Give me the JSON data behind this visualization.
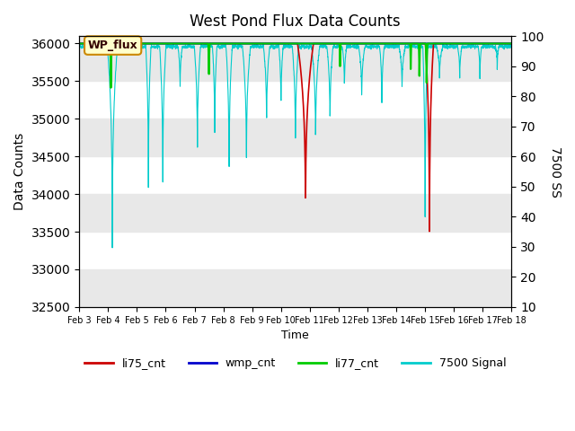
{
  "title": "West Pond Flux Data Counts",
  "xlabel": "Time",
  "ylabel_left": "Data Counts",
  "ylabel_right": "7500 SS",
  "ylim_left": [
    32500,
    36100
  ],
  "ylim_right": [
    10,
    100
  ],
  "yticks_left": [
    32500,
    33000,
    33500,
    34000,
    34500,
    35000,
    35500,
    36000
  ],
  "yticks_right": [
    10,
    20,
    30,
    40,
    50,
    60,
    70,
    80,
    90,
    100
  ],
  "xtick_labels": [
    "Feb 3",
    "Feb 4",
    "Feb 5",
    "Feb 6",
    "Feb 7",
    "Feb 8",
    "Feb 9",
    "Feb 10",
    "Feb 11",
    "Feb 12",
    "Feb 13",
    "Feb 14",
    "Feb 15",
    "Feb 16",
    "Feb 17",
    "Feb 18"
  ],
  "annotation_text": "WP_flux",
  "colors": {
    "li75_cnt": "#cc0000",
    "wmp_cnt": "#0000cc",
    "li77_cnt": "#00cc00",
    "signal_7500": "#00cccc",
    "bg_gray": "#e8e8e8",
    "annotation_bg": "#ffffcc",
    "annotation_border": "#cc8800"
  },
  "legend_entries": [
    "li75_cnt",
    "wmp_cnt",
    "li77_cnt",
    "7500 Signal"
  ],
  "legend_colors": [
    "#cc0000",
    "#0000cc",
    "#00cc00",
    "#00cccc"
  ]
}
